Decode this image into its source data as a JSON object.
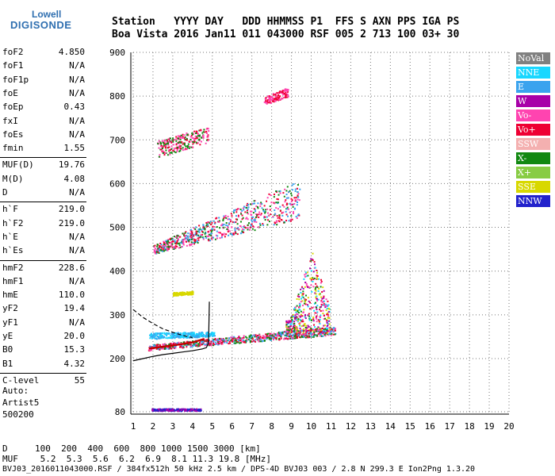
{
  "logo": {
    "line1": "Lowell",
    "line2": "DIGISONDE"
  },
  "header": {
    "row1": "Station   YYYY DAY   DDD HHMMSS P1  FFS S AXN PPS IGA PS",
    "row2": "Boa Vista 2016 Jan11 011 043000 RSF 005 2 713 100 03+ 30"
  },
  "params": [
    {
      "label": "foF2",
      "value": "4.850"
    },
    {
      "label": "foF1",
      "value": "N/A"
    },
    {
      "label": "foF1p",
      "value": "N/A"
    },
    {
      "label": "foE",
      "value": "N/A"
    },
    {
      "label": "foEp",
      "value": "0.43"
    },
    {
      "label": "fxI",
      "value": "N/A"
    },
    {
      "label": "foEs",
      "value": "N/A"
    },
    {
      "label": "fmin",
      "value": "1.55"
    },
    {
      "label": "MUF(D)",
      "value": "19.76"
    },
    {
      "label": "M(D)",
      "value": "4.08"
    },
    {
      "label": "D",
      "value": "N/A"
    },
    {
      "label": "h`F",
      "value": "219.0"
    },
    {
      "label": "h`F2",
      "value": "219.0"
    },
    {
      "label": "h`E",
      "value": "N/A"
    },
    {
      "label": "h`Es",
      "value": "N/A"
    },
    {
      "label": "hmF2",
      "value": "228.6"
    },
    {
      "label": "hmF1",
      "value": "N/A"
    },
    {
      "label": "hmE",
      "value": "110.0"
    },
    {
      "label": "yF2",
      "value": "19.4"
    },
    {
      "label": "yF1",
      "value": "N/A"
    },
    {
      "label": "yE",
      "value": "20.0"
    },
    {
      "label": "B0",
      "value": "15.3"
    },
    {
      "label": "B1",
      "value": "4.32"
    },
    {
      "label": "C-level",
      "value": "55"
    }
  ],
  "autoscale": {
    "line1": "Auto:",
    "line2": "Artist5",
    "line3": "500200"
  },
  "legend": [
    {
      "label": "NoVal",
      "color": "#808080"
    },
    {
      "label": "NNE",
      "color": "#19d7ff"
    },
    {
      "label": "E",
      "color": "#3aa3ee"
    },
    {
      "label": "W",
      "color": "#a800a8"
    },
    {
      "label": "Vo-",
      "color": "#ff44b0"
    },
    {
      "label": "Vo+",
      "color": "#ee0033"
    },
    {
      "label": "SSW",
      "color": "#f4b0b0"
    },
    {
      "label": "X-",
      "color": "#118811"
    },
    {
      "label": "X+",
      "color": "#88cc44"
    },
    {
      "label": "SSE",
      "color": "#d8d800"
    },
    {
      "label": "NNW",
      "color": "#2222cc"
    }
  ],
  "footer": {
    "d_label": "D",
    "d_values": "100  200  400  600  800 1000 1500 3000 [km]",
    "muf_label": "MUF",
    "muf_values": " 5.2  5.3  5.6  6.2  6.9  8.1 11.3 19.8 [MHz]",
    "file_line": "BVJ03_2016011043000.RSF / 384fx512h 50 kHz 2.5 km / DPS-4D BVJ03 003 / 2.8 N 299.3 E Ion2Png 1.3.20"
  },
  "chart_data": {
    "type": "scatter",
    "title": "",
    "xlabel": "",
    "ylabel": "",
    "xlim": [
      1,
      20
    ],
    "ylim": [
      80,
      900
    ],
    "x_ticks": [
      1,
      2,
      3,
      4,
      5,
      6,
      7,
      8,
      9,
      10,
      11,
      12,
      13,
      14,
      15,
      16,
      17,
      18,
      19,
      20
    ],
    "y_ticks": [
      80,
      200,
      300,
      400,
      500,
      600,
      700,
      800,
      900
    ],
    "grid": true,
    "traces": [
      {
        "name": "F-layer 1st hop",
        "shape": "band",
        "x_start": 1.75,
        "x_end": 11.2,
        "y_start_low": 220,
        "y_start_high": 232,
        "y_end_low": 255,
        "y_end_high": 275,
        "colors": [
          "#ee0033",
          "#ff44b0",
          "#118811",
          "#3aa3ee"
        ]
      },
      {
        "name": "E trace",
        "shape": "band",
        "x_start": 1.8,
        "x_end": 5.1,
        "y_start_low": 245,
        "y_start_high": 260,
        "y_end_low": 252,
        "y_end_high": 262,
        "colors": [
          "#3aa3ee",
          "#19d7ff"
        ]
      },
      {
        "name": "Spread F",
        "shape": "plume",
        "x_start": 8.7,
        "x_end": 10.9,
        "y_low": 260,
        "y_high": 450,
        "colors": [
          "#ff44b0",
          "#ee0033",
          "#118811",
          "#a800a8",
          "#19d7ff",
          "#d8d800"
        ]
      },
      {
        "name": "2nd hop",
        "shape": "band",
        "x_start": 2.0,
        "x_end": 9.4,
        "y_start_low": 440,
        "y_start_high": 460,
        "y_end_low": 520,
        "y_end_high": 610,
        "colors": [
          "#ee0033",
          "#ff44b0",
          "#118811",
          "#3aa3ee"
        ]
      },
      {
        "name": "3rd hop",
        "shape": "band",
        "x_start": 2.2,
        "x_end": 4.8,
        "y_start_low": 660,
        "y_start_high": 700,
        "y_end_low": 695,
        "y_end_high": 730,
        "colors": [
          "#ee0033",
          "#ff44b0",
          "#118811"
        ]
      },
      {
        "name": "4th hop",
        "shape": "band",
        "x_start": 7.6,
        "x_end": 8.8,
        "y_start_low": 780,
        "y_start_high": 800,
        "y_end_low": 800,
        "y_end_high": 820,
        "colors": [
          "#ee0033",
          "#ff44b0"
        ]
      },
      {
        "name": "Es",
        "shape": "band",
        "x_start": 3.0,
        "x_end": 4.0,
        "y_start_low": 345,
        "y_start_high": 352,
        "y_end_low": 348,
        "y_end_high": 355,
        "colors": [
          "#d8d800"
        ]
      },
      {
        "name": "Low-height",
        "shape": "band",
        "x_start": 1.9,
        "x_end": 4.4,
        "y_start_low": 83,
        "y_start_high": 88,
        "y_end_low": 83,
        "y_end_high": 88,
        "colors": [
          "#a800a8",
          "#2222cc"
        ]
      }
    ],
    "profile": [
      [
        1,
        195
      ],
      [
        1.5,
        200
      ],
      [
        2,
        205
      ],
      [
        2.5,
        209
      ],
      [
        3,
        212
      ],
      [
        3.5,
        215
      ],
      [
        4,
        218
      ],
      [
        4.5,
        222
      ],
      [
        4.7,
        225
      ],
      [
        4.8,
        235
      ],
      [
        4.82,
        260
      ],
      [
        4.85,
        330
      ]
    ],
    "dashed_curve": [
      [
        1,
        312
      ],
      [
        1.5,
        294
      ],
      [
        2,
        280
      ],
      [
        2.5,
        268
      ],
      [
        3,
        260
      ],
      [
        3.5,
        253
      ],
      [
        4,
        248
      ]
    ],
    "fit_curve": [
      [
        1.8,
        223
      ],
      [
        3,
        230
      ],
      [
        4,
        237
      ],
      [
        4.6,
        245
      ]
    ]
  }
}
